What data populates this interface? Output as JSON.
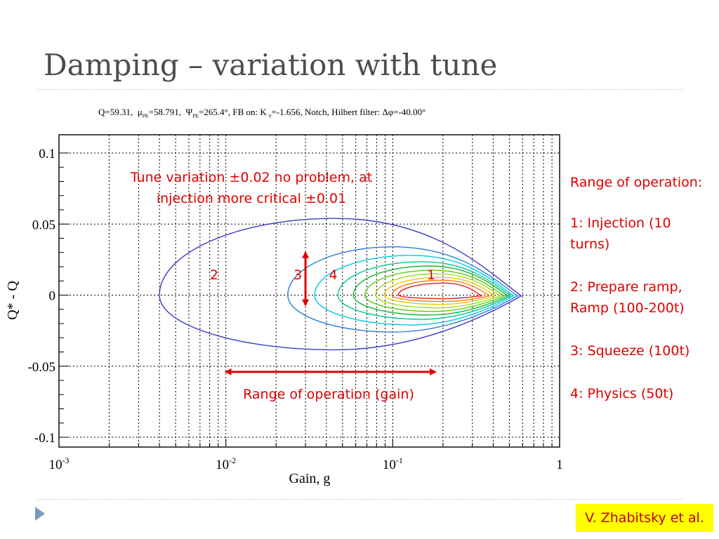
{
  "slide": {
    "title": "Damping – variation with tune",
    "credit": "V. Zhabitsky et al."
  },
  "params_line": {
    "q": "Q=59.31,",
    "mu_sym": "μ",
    "mu_sub": "PK",
    "mu_val": "=58.791,",
    "psi_sym": "Ψ",
    "psi_sub": "PK",
    "psi_val": "=265.4°, FB on: K",
    "k_sub": "0",
    "k_val": "=-1.656, Notch, Hilbert filter: Δφ=-40.00°"
  },
  "side_notes": {
    "heading": "Range of operation:",
    "items": [
      "1: Injection (10 turns)",
      "2: Prepare ramp, Ramp (100-200t)",
      "3: Squeeze (100t)",
      "4: Physics (50t)"
    ]
  },
  "annotations": {
    "tune_note_line1": "Tune variation ±0.02 no problem, at",
    "tune_note_line2": "injection more critical ±0.01",
    "range_gain": "Range of operation (gain)"
  },
  "colors": {
    "annotation_red": "#e00000",
    "title_gray": "#4d4d4d",
    "credit_bg": "#ffff00"
  },
  "chart_data": {
    "type": "contour",
    "xlabel": "Gain, g",
    "ylabel": "Q* - Q",
    "xscale": "log",
    "xlim": [
      0.001,
      1
    ],
    "ylim": [
      -0.1,
      0.11
    ],
    "xticks": [
      {
        "value": 0.001,
        "base": "10",
        "exp": "-3"
      },
      {
        "value": 0.01,
        "base": "10",
        "exp": "-2"
      },
      {
        "value": 0.1,
        "base": "10",
        "exp": "-1"
      },
      {
        "value": 1,
        "base": "1",
        "exp": ""
      }
    ],
    "yticks": [
      {
        "value": 0.1,
        "label": "0.1"
      },
      {
        "value": 0.05,
        "label": "0.05"
      },
      {
        "value": 0,
        "label": "0"
      },
      {
        "value": -0.05,
        "label": "-0.05"
      },
      {
        "value": -0.1,
        "label": "-0.1"
      }
    ],
    "grid": true,
    "contours": [
      {
        "xl": 0.004,
        "xn": 0.045,
        "xr": 0.59,
        "ytop": 0.054,
        "ybot": -0.0385,
        "color": "#3c3cc8"
      },
      {
        "xl": 0.0235,
        "xn": 0.1,
        "xr": 0.56,
        "ytop": 0.034,
        "ybot": -0.026,
        "color": "#2b7fd6"
      },
      {
        "xl": 0.034,
        "xn": 0.13,
        "xr": 0.53,
        "ytop": 0.028,
        "ybot": -0.021,
        "color": "#00c8e6"
      },
      {
        "xl": 0.047,
        "xn": 0.15,
        "xr": 0.51,
        "ytop": 0.0235,
        "ybot": -0.017,
        "color": "#00c88c"
      },
      {
        "xl": 0.058,
        "xn": 0.165,
        "xr": 0.49,
        "ytop": 0.0205,
        "ybot": -0.014,
        "color": "#14b432"
      },
      {
        "xl": 0.068,
        "xn": 0.175,
        "xr": 0.465,
        "ytop": 0.0175,
        "ybot": -0.0115,
        "color": "#5ac814"
      },
      {
        "xl": 0.079,
        "xn": 0.185,
        "xr": 0.44,
        "ytop": 0.015,
        "ybot": -0.009,
        "color": "#a0dc1e"
      },
      {
        "xl": 0.089,
        "xn": 0.195,
        "xr": 0.41,
        "ytop": 0.0125,
        "ybot": -0.0065,
        "color": "#e6c800"
      },
      {
        "xl": 0.099,
        "xn": 0.2,
        "xr": 0.38,
        "ytop": 0.0105,
        "ybot": -0.0045,
        "color": "#f08214"
      },
      {
        "xl": 0.108,
        "xn": 0.205,
        "xr": 0.34,
        "ytop": 0.0085,
        "ybot": -0.0025,
        "color": "#e61e1e"
      }
    ],
    "region_labels": [
      {
        "label": "2",
        "x": 0.0085,
        "y": 0.011
      },
      {
        "label": "3",
        "x": 0.027,
        "y": 0.011
      },
      {
        "label": "4",
        "x": 0.044,
        "y": 0.011
      },
      {
        "label": "1",
        "x": 0.17,
        "y": 0.011
      }
    ],
    "tune_arrow": {
      "x": 0.03,
      "y_from": 0.03,
      "y_to": -0.007
    },
    "gain_arrow": {
      "x_from": 0.01,
      "x_to": 0.18,
      "y": -0.054
    }
  }
}
